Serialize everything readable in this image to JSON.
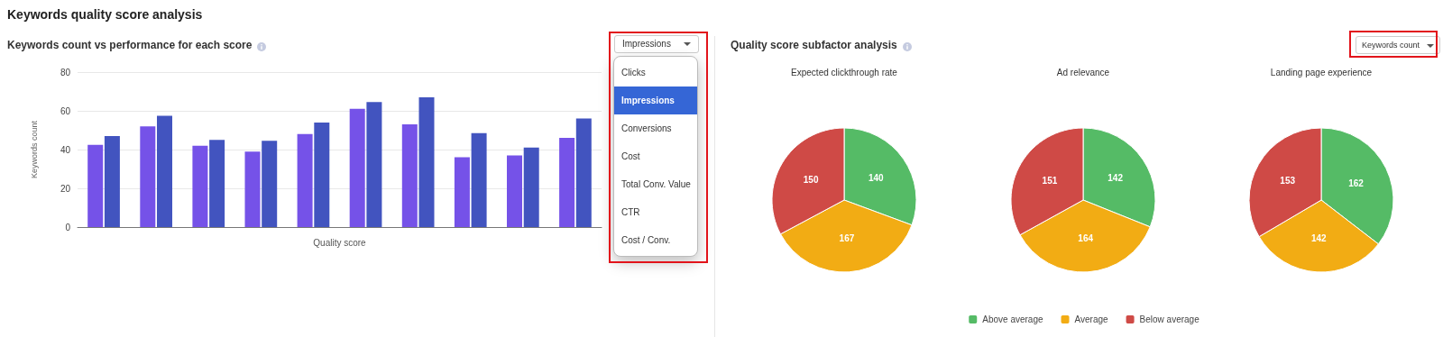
{
  "chart_data": [
    {
      "type": "bar",
      "title": "Keywords count vs performance for each score",
      "xlabel": "Quality score",
      "ylabel": "Keywords count",
      "categories": [
        null,
        null,
        null,
        null,
        null,
        null,
        null,
        null,
        null,
        null
      ],
      "series": [
        {
          "color": "#7552e8",
          "values": [
            42.5,
            52,
            42,
            39,
            48,
            61,
            53,
            36,
            37,
            46
          ]
        },
        {
          "color": "#4254bf",
          "values": [
            47,
            57.5,
            45,
            44.5,
            54,
            64.5,
            67,
            48.5,
            41,
            56
          ]
        }
      ],
      "ylim": [
        0,
        80
      ],
      "yticks": [
        0,
        20,
        40,
        60,
        80
      ],
      "grid": "y",
      "annotations": [
        "Keywords quality score analysis",
        "Impressions",
        "Clicks",
        "Impressions",
        "Conversions",
        "Cost",
        "Total Conv. Value",
        "CTR",
        "Cost / Conv."
      ]
    },
    {
      "type": "pie",
      "title": "Expected clickthrough rate",
      "categories": [
        null,
        null,
        null
      ],
      "values": [
        140,
        167,
        150
      ],
      "colors": [
        "#55bb66",
        "#f2ac14",
        "#cf4a46"
      ],
      "data_labels": true,
      "annotations": [
        "Quality score subfactor analysis",
        "Keywords count"
      ]
    },
    {
      "type": "pie",
      "title": "Ad relevance",
      "categories": [
        "Above average",
        "Average",
        "Below average"
      ],
      "values": [
        142,
        164,
        151
      ],
      "colors": [
        "#55bb66",
        "#f2ac14",
        "#cf4a46"
      ],
      "data_labels": true,
      "legend": "bottom"
    },
    {
      "type": "pie",
      "title": "Landing page experience",
      "categories": [
        null,
        null,
        null
      ],
      "values": [
        162,
        142,
        153
      ],
      "colors": [
        "#55bb66",
        "#f2ac14",
        "#cf4a46"
      ],
      "data_labels": true
    }
  ]
}
